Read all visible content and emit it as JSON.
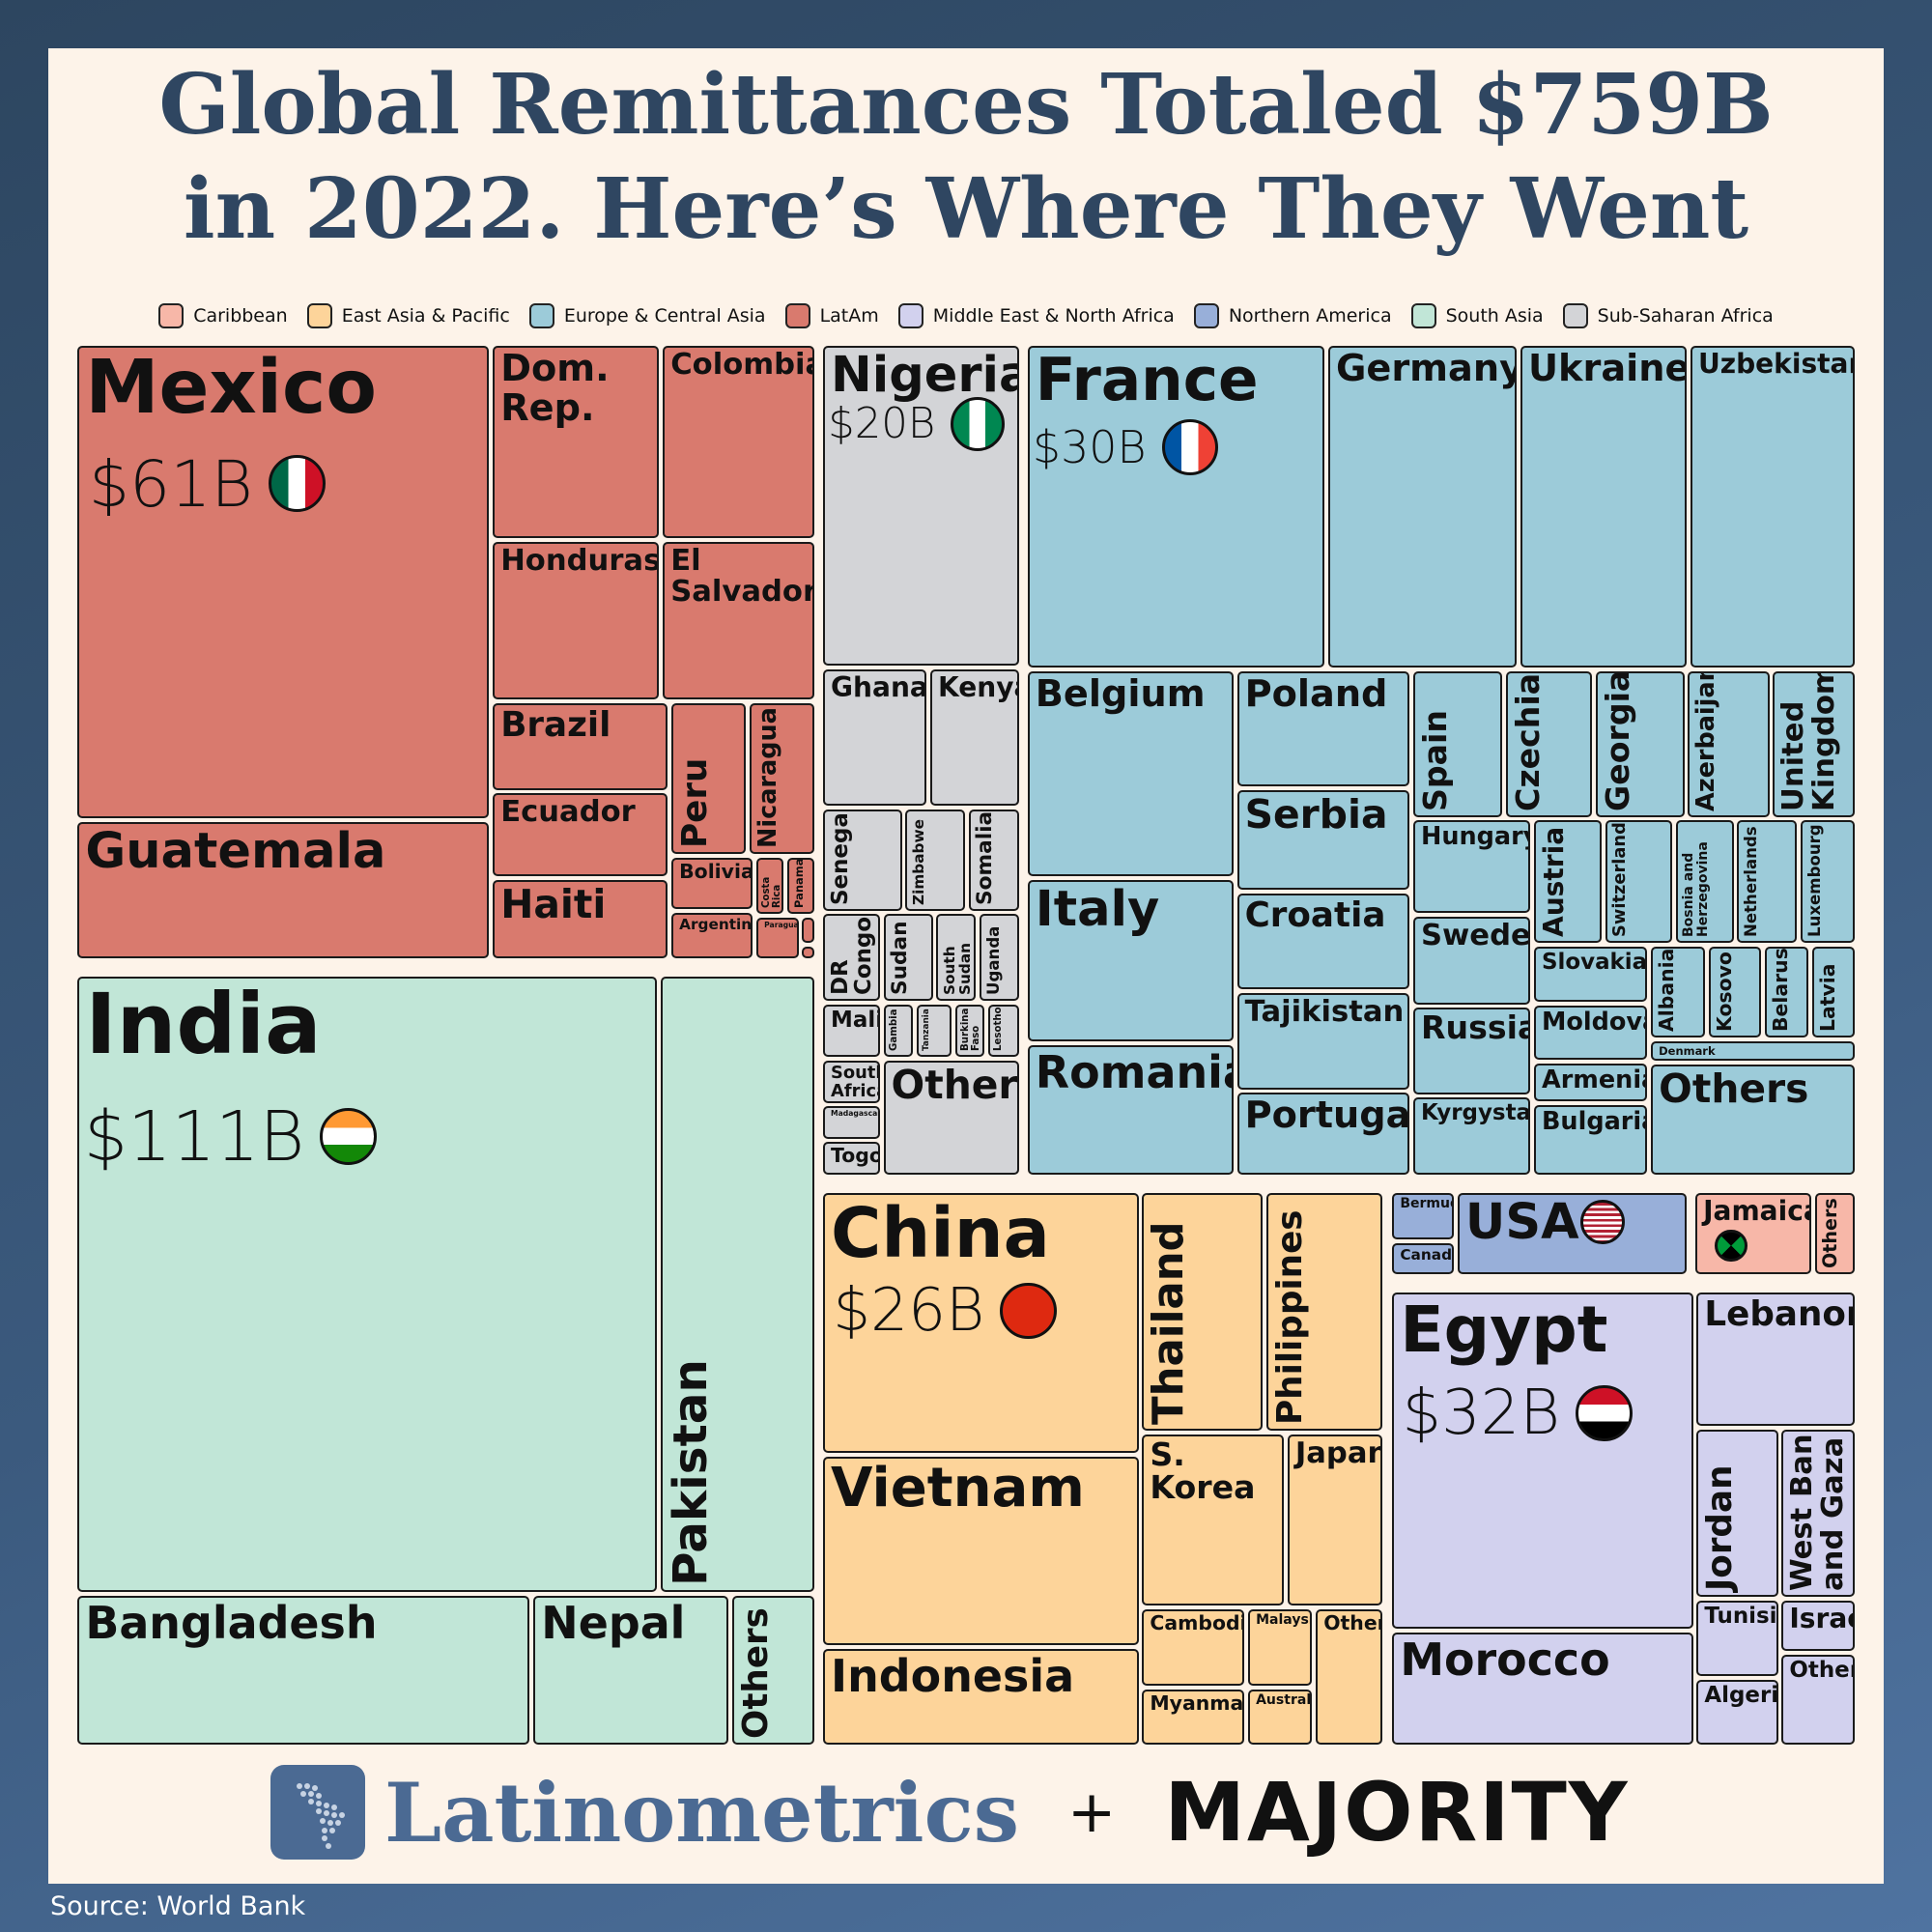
{
  "title_lines": [
    "Global Remittances Totaled $759B",
    "in 2022. Here’s Where They Went"
  ],
  "legend": [
    {
      "label": "Caribbean",
      "color": "#f7b7a8"
    },
    {
      "label": "East Asia & Pacific",
      "color": "#fdd49a"
    },
    {
      "label": "Europe & Central Asia",
      "color": "#9ccbd9"
    },
    {
      "label": "LatAm",
      "color": "#d97a6e"
    },
    {
      "label": "Middle East & North Africa",
      "color": "#d2d1ee"
    },
    {
      "label": "Northern America",
      "color": "#98afd9"
    },
    {
      "label": "South Asia",
      "color": "#c1e6d7"
    },
    {
      "label": "Sub-Saharan Africa",
      "color": "#d3d4d7"
    }
  ],
  "chart_data": {
    "type": "treemap",
    "title": "Global Remittances Totaled $759B in 2022. Here’s Where They Went",
    "total": "$759B",
    "units": "USD",
    "labeled_values": [
      {
        "name": "India",
        "value": 111,
        "label": "$111B"
      },
      {
        "name": "Mexico",
        "value": 61,
        "label": "$61B"
      },
      {
        "name": "Egypt",
        "value": 32,
        "label": "$32B"
      },
      {
        "name": "France",
        "value": 30,
        "label": "$30B"
      },
      {
        "name": "China",
        "value": 26,
        "label": "$26B"
      },
      {
        "name": "Nigeria",
        "value": 20,
        "label": "$20B"
      }
    ],
    "groups": [
      {
        "region": "LatAm",
        "countries": [
          "Mexico",
          "Guatemala",
          "Dom. Rep.",
          "Colombia",
          "Honduras",
          "El Salvador",
          "Brazil",
          "Peru",
          "Nicaragua",
          "Ecuador",
          "Bolivia",
          "Costa Rica",
          "Panama",
          "Haiti",
          "Argentina",
          "Paraguay"
        ]
      },
      {
        "region": "South Asia",
        "countries": [
          "India",
          "Pakistan",
          "Bangladesh",
          "Nepal",
          "Others"
        ]
      },
      {
        "region": "Sub-Saharan Africa",
        "countries": [
          "Nigeria",
          "Ghana",
          "Kenya",
          "Senegal",
          "Zimbabwe",
          "Somalia",
          "DR Congo",
          "Sudan",
          "South Sudan",
          "Uganda",
          "Mali",
          "Gambia",
          "Tanzania",
          "Burkina Faso",
          "Lesotho",
          "South Africa",
          "Madagascar",
          "Togo",
          "Others"
        ]
      },
      {
        "region": "Europe & Central Asia",
        "countries": [
          "France",
          "Germany",
          "Ukraine",
          "Uzbekistan",
          "Belgium",
          "Poland",
          "Serbia",
          "Spain",
          "Czechia",
          "Georgia",
          "Azerbaijan",
          "United Kingdom",
          "Italy",
          "Croatia",
          "Tajikistan",
          "Romania",
          "Portugal",
          "Hungary",
          "Sweden",
          "Russia",
          "Kyrgystan",
          "Austria",
          "Switzerland",
          "Bosnia and Herzegovina",
          "Netherlands",
          "Luxembourg",
          "Slovakia",
          "Moldova",
          "Armenia",
          "Bulgaria",
          "Albania",
          "Kosovo",
          "Belarus",
          "Latvia",
          "Denmark",
          "Others"
        ]
      },
      {
        "region": "East Asia & Pacific",
        "countries": [
          "China",
          "Vietnam",
          "Indonesia",
          "Thailand",
          "Philippines",
          "S. Korea",
          "Japan",
          "Cambodia",
          "Malaysia",
          "Myanmar",
          "Australia",
          "Others"
        ]
      },
      {
        "region": "Northern America",
        "countries": [
          "USA",
          "Bermuda",
          "Canada"
        ]
      },
      {
        "region": "Caribbean",
        "countries": [
          "Jamaica",
          "Others"
        ]
      },
      {
        "region": "Middle East & North Africa",
        "countries": [
          "Egypt",
          "Lebanon",
          "Jordan",
          "West Bank and Gaza",
          "Tunisia",
          "Israel",
          "Morocco",
          "Algeria",
          "Others"
        ]
      }
    ]
  },
  "values": {
    "mexico": "$61B",
    "india": "$111B",
    "nigeria": "$20B",
    "france": "$30B",
    "china": "$26B",
    "egypt": "$32B"
  },
  "cells": {
    "mexico": "Mexico",
    "guatemala": "Guatemala",
    "dom_rep": "Dom.\nRep.",
    "colombia": "Colombia",
    "honduras": "Honduras",
    "el_salvador": "El\nSalvador",
    "brazil": "Brazil",
    "peru": "Peru",
    "nicaragua": "Nicaragua",
    "ecuador": "Ecuador",
    "bolivia": "Bolivia",
    "costa_rica": "Costa\nRica",
    "panama": "Panama",
    "haiti": "Haiti",
    "argentina": "Argentina",
    "paraguay": "Paraguay",
    "india": "India",
    "pakistan": "Pakistan",
    "bangladesh": "Bangladesh",
    "nepal": "Nepal",
    "sa_others": "Others",
    "nigeria": "Nigeria",
    "ghana": "Ghana",
    "kenya": "Kenya",
    "senegal": "Senegal",
    "zimbabwe": "Zimbabwe",
    "somalia": "Somalia",
    "dr_congo": "DR\nCongo",
    "sudan": "Sudan",
    "south_sudan": "South\nSudan",
    "uganda": "Uganda",
    "mali": "Mali",
    "gambia": "Gambia",
    "tanzania": "Tanzania",
    "burkina_faso": "Burkina\nFaso",
    "lesotho": "Lesotho",
    "south_africa": "South\nAfrica",
    "madagascar": "Madagascar",
    "togo": "Togo",
    "ssa_others": "Others",
    "france": "France",
    "germany": "Germany",
    "ukraine": "Ukraine",
    "uzbekistan": "Uzbekistan",
    "belgium": "Belgium",
    "poland": "Poland",
    "serbia": "Serbia",
    "spain": "Spain",
    "czechia": "Czechia",
    "georgia": "Georgia",
    "azerbaijan": "Azerbaijan",
    "uk": "United\nKingdom",
    "italy": "Italy",
    "croatia": "Croatia",
    "tajikistan": "Tajikistan",
    "romania": "Romania",
    "portugal": "Portugal",
    "hungary": "Hungary",
    "sweden": "Sweden",
    "russia": "Russia",
    "kyrgystan": "Kyrgystan",
    "austria": "Austria",
    "switzerland": "Switzerland",
    "bosnia": "Bosnia and\nHerzegovina",
    "netherlands": "Netherlands",
    "luxembourg": "Luxembourg",
    "slovakia": "Slovakia",
    "moldova": "Moldova",
    "armenia": "Armenia",
    "bulgaria": "Bulgaria",
    "albania": "Albania",
    "kosovo": "Kosovo",
    "belarus": "Belarus",
    "latvia": "Latvia",
    "denmark": "Denmark",
    "eca_others": "Others",
    "china": "China",
    "vietnam": "Vietnam",
    "indonesia": "Indonesia",
    "thailand": "Thailand",
    "philippines": "Philippines",
    "s_korea": "S. Korea",
    "japan": "Japan",
    "cambodia": "Cambodia",
    "malaysia": "Malaysia",
    "myanmar": "Myanmar",
    "australia": "Australia",
    "eap_others": "Others",
    "bermuda": "Bermuda",
    "canada": "Canada",
    "usa": "USA",
    "jamaica": "Jamaica",
    "car_others": "Others",
    "egypt": "Egypt",
    "lebanon": "Lebanon",
    "jordan": "Jordan",
    "west_bank": "West Bank\nand Gaza",
    "tunisia": "Tunisia",
    "israel": "Israel",
    "morocco": "Morocco",
    "algeria": "Algeria",
    "mena_others": "Others"
  },
  "brand": {
    "name": "Latinometrics",
    "plus": "+",
    "partner": "MAJORITY"
  },
  "source": "Source: World Bank"
}
